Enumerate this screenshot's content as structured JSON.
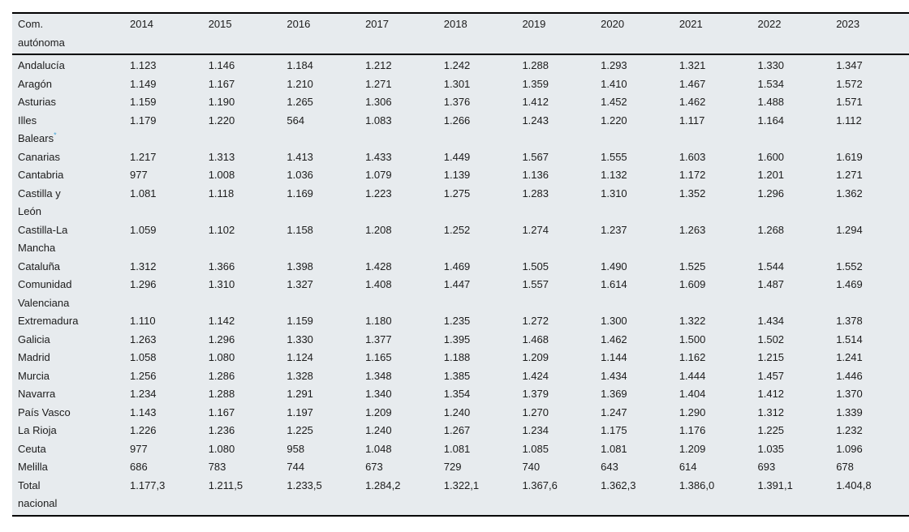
{
  "chart_data": {
    "type": "table",
    "header": {
      "region_column_label": "Com.\nautónoma",
      "year_columns": [
        "2014",
        "2015",
        "2016",
        "2017",
        "2018",
        "2019",
        "2020",
        "2021",
        "2022",
        "2023"
      ]
    },
    "rows": [
      {
        "name": "Andalucía",
        "values": [
          "1.123",
          "1.146",
          "1.184",
          "1.212",
          "1.242",
          "1.288",
          "1.293",
          "1.321",
          "1.330",
          "1.347"
        ]
      },
      {
        "name": "Aragón",
        "values": [
          "1.149",
          "1.167",
          "1.210",
          "1.271",
          "1.301",
          "1.359",
          "1.410",
          "1.467",
          "1.534",
          "1.572"
        ]
      },
      {
        "name": "Asturias",
        "values": [
          "1.159",
          "1.190",
          "1.265",
          "1.306",
          "1.376",
          "1.412",
          "1.452",
          "1.462",
          "1.488",
          "1.571"
        ]
      },
      {
        "name": "Illes\nBalears",
        "marker": "*",
        "values": [
          "1.179",
          "1.220",
          "564",
          "1.083",
          "1.266",
          "1.243",
          "1.220",
          "1.117",
          "1.164",
          "1.112"
        ]
      },
      {
        "name": "Canarias",
        "values": [
          "1.217",
          "1.313",
          "1.413",
          "1.433",
          "1.449",
          "1.567",
          "1.555",
          "1.603",
          "1.600",
          "1.619"
        ]
      },
      {
        "name": "Cantabria",
        "values": [
          "977",
          "1.008",
          "1.036",
          "1.079",
          "1.139",
          "1.136",
          "1.132",
          "1.172",
          "1.201",
          "1.271"
        ]
      },
      {
        "name": "Castilla y\nLeón",
        "values": [
          "1.081",
          "1.118",
          "1.169",
          "1.223",
          "1.275",
          "1.283",
          "1.310",
          "1.352",
          "1.296",
          "1.362"
        ]
      },
      {
        "name": "Castilla-La\nMancha",
        "values": [
          "1.059",
          "1.102",
          "1.158",
          "1.208",
          "1.252",
          "1.274",
          "1.237",
          "1.263",
          "1.268",
          "1.294"
        ]
      },
      {
        "name": "Cataluña",
        "values": [
          "1.312",
          "1.366",
          "1.398",
          "1.428",
          "1.469",
          "1.505",
          "1.490",
          "1.525",
          "1.544",
          "1.552"
        ]
      },
      {
        "name": "Comunidad\nValenciana",
        "values": [
          "1.296",
          "1.310",
          "1.327",
          "1.408",
          "1.447",
          "1.557",
          "1.614",
          "1.609",
          "1.487",
          "1.469"
        ]
      },
      {
        "name": "Extremadura",
        "values": [
          "1.110",
          "1.142",
          "1.159",
          "1.180",
          "1.235",
          "1.272",
          "1.300",
          "1.322",
          "1.434",
          "1.378"
        ]
      },
      {
        "name": "Galicia",
        "values": [
          "1.263",
          "1.296",
          "1.330",
          "1.377",
          "1.395",
          "1.468",
          "1.462",
          "1.500",
          "1.502",
          "1.514"
        ]
      },
      {
        "name": "Madrid",
        "values": [
          "1.058",
          "1.080",
          "1.124",
          "1.165",
          "1.188",
          "1.209",
          "1.144",
          "1.162",
          "1.215",
          "1.241"
        ]
      },
      {
        "name": "Murcia",
        "values": [
          "1.256",
          "1.286",
          "1.328",
          "1.348",
          "1.385",
          "1.424",
          "1.434",
          "1.444",
          "1.457",
          "1.446"
        ]
      },
      {
        "name": "Navarra",
        "values": [
          "1.234",
          "1.288",
          "1.291",
          "1.340",
          "1.354",
          "1.379",
          "1.369",
          "1.404",
          "1.412",
          "1.370"
        ]
      },
      {
        "name": "País Vasco",
        "values": [
          "1.143",
          "1.167",
          "1.197",
          "1.209",
          "1.240",
          "1.270",
          "1.247",
          "1.290",
          "1.312",
          "1.339"
        ]
      },
      {
        "name": "La Rioja",
        "values": [
          "1.226",
          "1.236",
          "1.225",
          "1.240",
          "1.267",
          "1.234",
          "1.175",
          "1.176",
          "1.225",
          "1.232"
        ]
      },
      {
        "name": "Ceuta",
        "values": [
          "977",
          "1.080",
          "958",
          "1.048",
          "1.081",
          "1.085",
          "1.081",
          "1.209",
          "1.035",
          "1.096"
        ]
      },
      {
        "name": "Melilla",
        "values": [
          "686",
          "783",
          "744",
          "673",
          "729",
          "740",
          "643",
          "614",
          "693",
          "678"
        ]
      },
      {
        "name": "Total\nnacional",
        "values": [
          "1.177,3",
          "1.211,5",
          "1.233,5",
          "1.284,2",
          "1.322,1",
          "1.367,6",
          "1.362,3",
          "1.386,0",
          "1.391,1",
          "1.404,8"
        ]
      }
    ],
    "footnote_marker": "*",
    "colors": {
      "table_background": "#e7ebee",
      "text": "#1c1c1c",
      "footnote_marker_blue": "#4aa7d9",
      "border": "#000000"
    },
    "layout_hints": {
      "grid": "off",
      "value_alignment": "left"
    }
  }
}
